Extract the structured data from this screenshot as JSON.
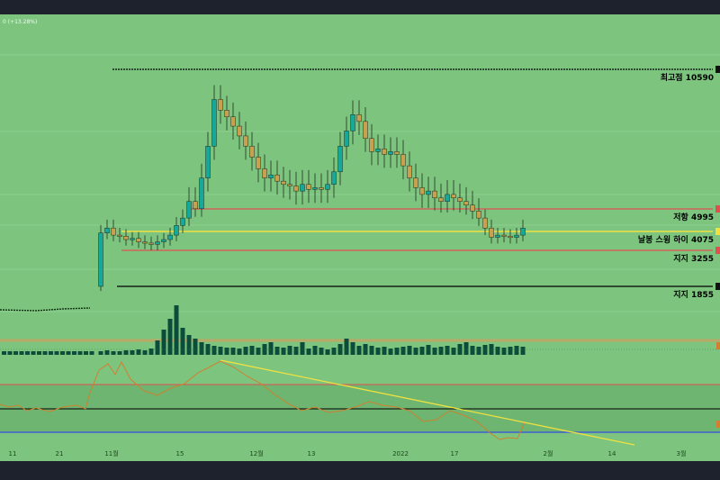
{
  "chart_data": {
    "type": "candlestick",
    "change_label": "0 (+13.28%)",
    "x_ticks": [
      "11",
      "21",
      "11월",
      "15",
      "12월",
      "13",
      "2022",
      "17",
      "2월",
      "14",
      "3월"
    ],
    "levels": [
      {
        "label": "최고점 10590",
        "value": 10590,
        "color": "#000000",
        "style": "dotted"
      },
      {
        "label": "저항 4995",
        "value": 4995,
        "color": "#e05050",
        "style": "solid"
      },
      {
        "label": "날봉 스윙 하이 4075",
        "value": 4075,
        "color": "#f0e040",
        "style": "solid"
      },
      {
        "label": "지지 3255",
        "value": 3255,
        "color": "#e05050",
        "style": "solid"
      },
      {
        "label": "지지 1855",
        "value": 1855,
        "color": "#000000",
        "style": "solid"
      }
    ],
    "colors": {
      "background": "#7dc47f",
      "up": "#16a89a",
      "down": "#c8a050",
      "volume": "#0b4d3a",
      "oscillator": "#d08030",
      "trendline": "#f0e040"
    }
  }
}
